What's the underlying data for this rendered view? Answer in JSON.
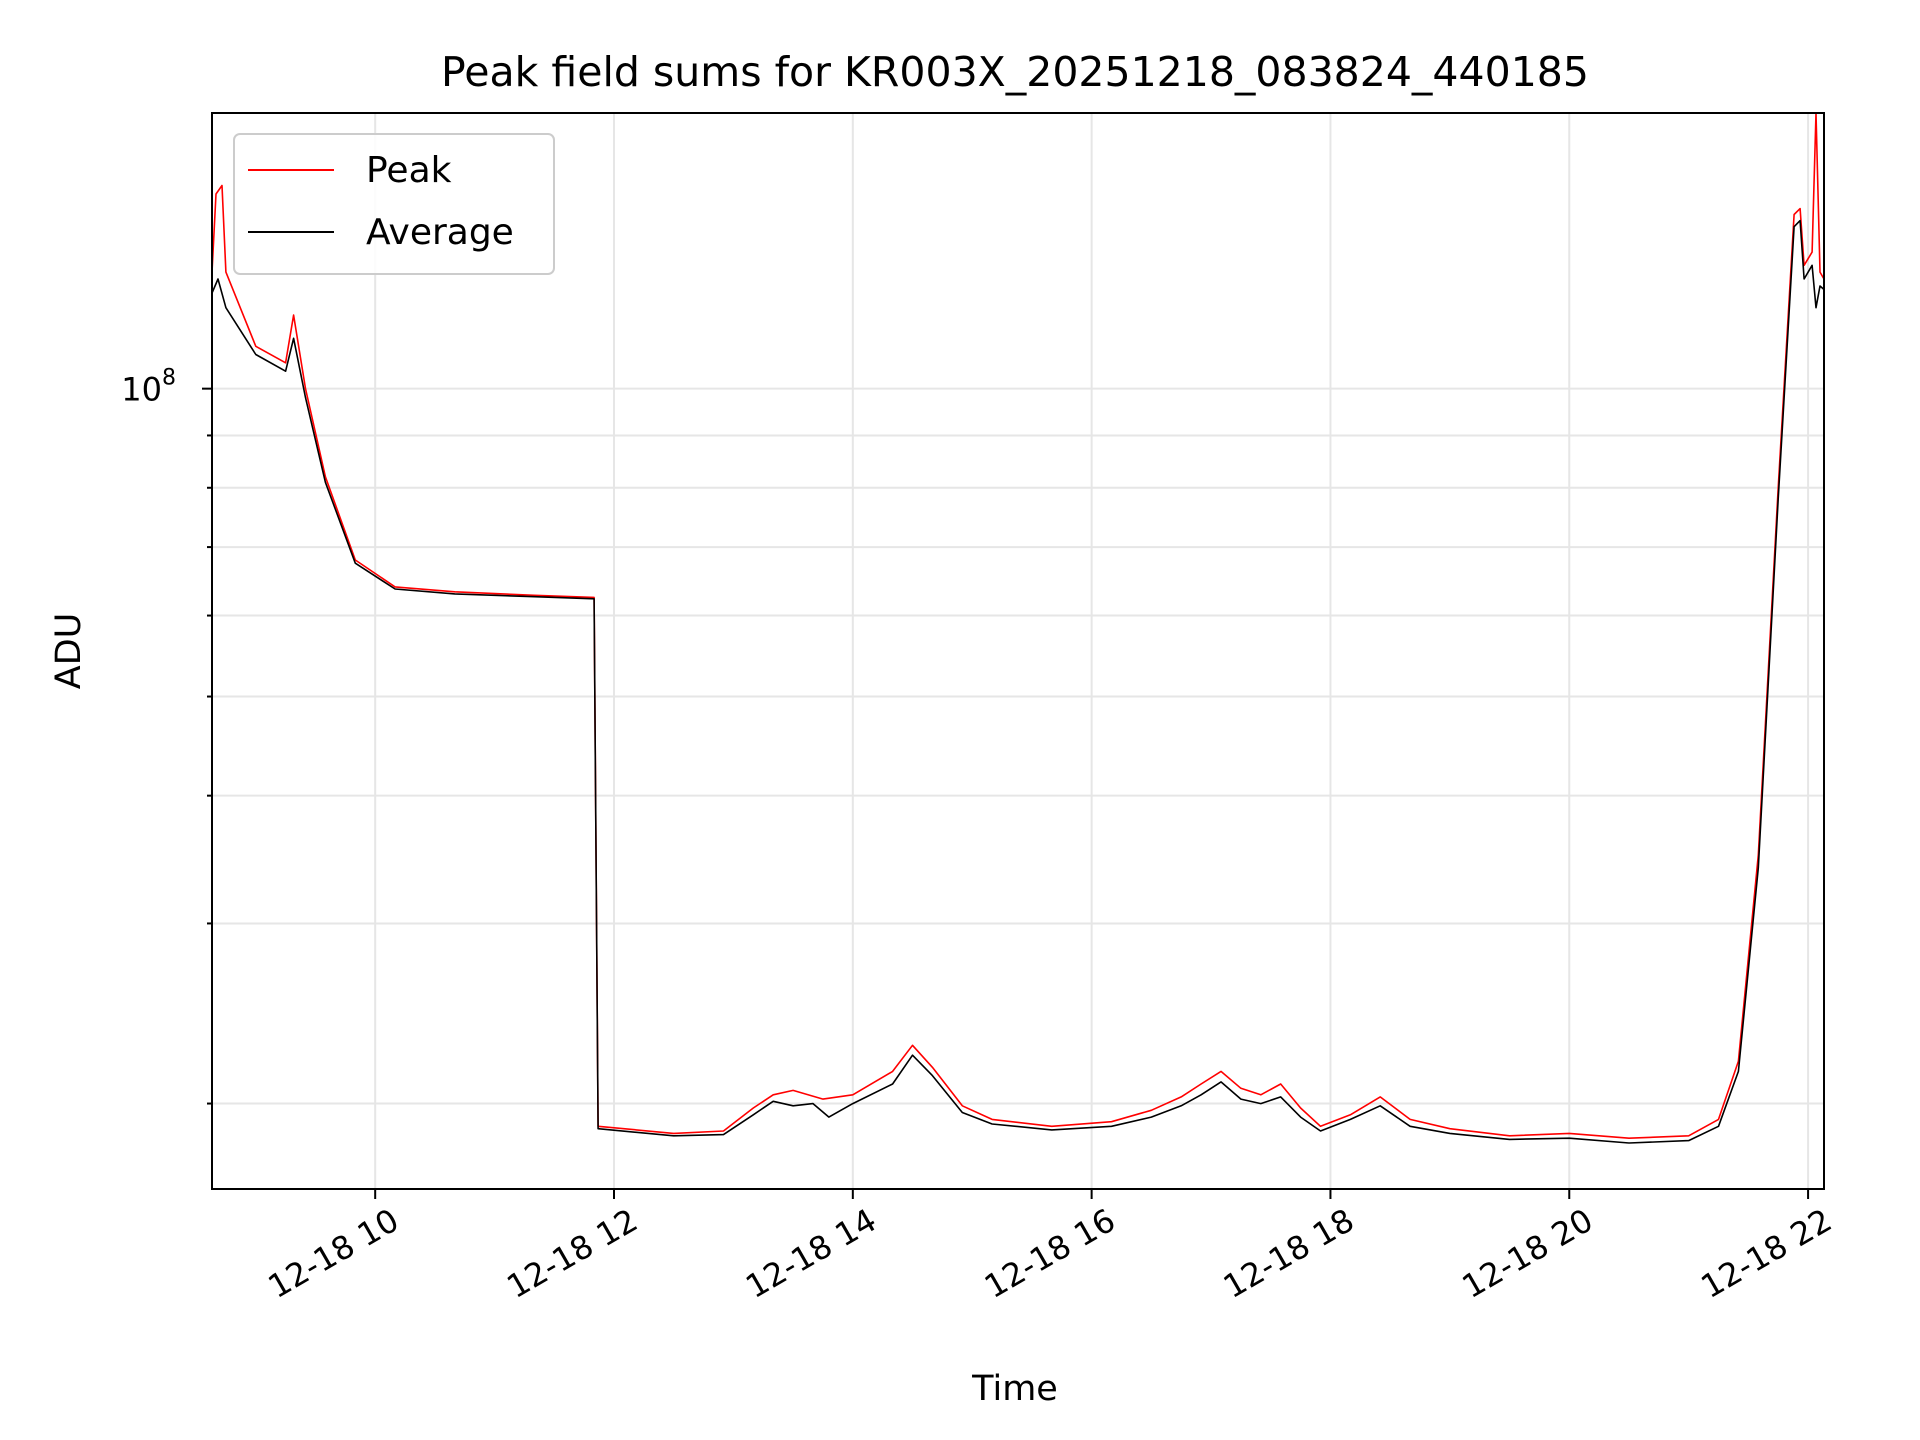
{
  "chart_data": {
    "type": "line",
    "title": "Peak field sums for KR003X_20251218_083824_440185",
    "xlabel": "Time",
    "ylabel": "ADU",
    "y_scale": "log",
    "y_major_tick": {
      "value": 100000000,
      "base": "10",
      "exponent": "8"
    },
    "ylim": [
      16500000,
      186000000
    ],
    "x_axis_type": "datetime",
    "xlim": [
      "2025-12-18 08:38",
      "2025-12-18 22:08"
    ],
    "x_ticks": [
      {
        "at": "2025-12-18 10:00",
        "label": "12-18 10"
      },
      {
        "at": "2025-12-18 12:00",
        "label": "12-18 12"
      },
      {
        "at": "2025-12-18 14:00",
        "label": "12-18 14"
      },
      {
        "at": "2025-12-18 16:00",
        "label": "12-18 16"
      },
      {
        "at": "2025-12-18 18:00",
        "label": "12-18 18"
      },
      {
        "at": "2025-12-18 20:00",
        "label": "12-18 20"
      },
      {
        "at": "2025-12-18 22:00",
        "label": "12-18 22"
      }
    ],
    "grid": true,
    "legend_position": "top-left",
    "series": [
      {
        "name": "Peak",
        "color": "#ff0000",
        "points": [
          [
            "2025-12-18 08:38",
            130000000
          ],
          [
            "2025-12-18 08:40",
            155000000
          ],
          [
            "2025-12-18 08:43",
            158000000
          ],
          [
            "2025-12-18 08:45",
            130000000
          ],
          [
            "2025-12-18 09:00",
            110000000
          ],
          [
            "2025-12-18 09:15",
            106000000
          ],
          [
            "2025-12-18 09:19",
            118000000
          ],
          [
            "2025-12-18 09:25",
            100000000
          ],
          [
            "2025-12-18 09:35",
            82000000
          ],
          [
            "2025-12-18 09:50",
            68000000
          ],
          [
            "2025-12-18 10:10",
            64000000
          ],
          [
            "2025-12-18 10:40",
            63300000
          ],
          [
            "2025-12-18 11:20",
            62800000
          ],
          [
            "2025-12-18 11:50",
            62500000
          ],
          [
            "2025-12-18 11:52",
            19000000
          ],
          [
            "2025-12-18 12:30",
            18700000
          ],
          [
            "2025-12-18 12:55",
            18800000
          ],
          [
            "2025-12-18 13:10",
            19800000
          ],
          [
            "2025-12-18 13:20",
            20400000
          ],
          [
            "2025-12-18 13:30",
            20600000
          ],
          [
            "2025-12-18 13:45",
            20200000
          ],
          [
            "2025-12-18 14:00",
            20400000
          ],
          [
            "2025-12-18 14:20",
            21500000
          ],
          [
            "2025-12-18 14:30",
            22800000
          ],
          [
            "2025-12-18 14:40",
            21700000
          ],
          [
            "2025-12-18 14:55",
            19900000
          ],
          [
            "2025-12-18 15:10",
            19300000
          ],
          [
            "2025-12-18 15:40",
            19000000
          ],
          [
            "2025-12-18 16:10",
            19200000
          ],
          [
            "2025-12-18 16:30",
            19700000
          ],
          [
            "2025-12-18 16:45",
            20300000
          ],
          [
            "2025-12-18 16:55",
            20900000
          ],
          [
            "2025-12-18 17:05",
            21500000
          ],
          [
            "2025-12-18 17:15",
            20700000
          ],
          [
            "2025-12-18 17:25",
            20400000
          ],
          [
            "2025-12-18 17:35",
            20900000
          ],
          [
            "2025-12-18 17:45",
            19800000
          ],
          [
            "2025-12-18 17:55",
            19000000
          ],
          [
            "2025-12-18 18:10",
            19500000
          ],
          [
            "2025-12-18 18:25",
            20300000
          ],
          [
            "2025-12-18 18:40",
            19300000
          ],
          [
            "2025-12-18 19:00",
            18900000
          ],
          [
            "2025-12-18 19:30",
            18600000
          ],
          [
            "2025-12-18 20:00",
            18700000
          ],
          [
            "2025-12-18 20:30",
            18500000
          ],
          [
            "2025-12-18 21:00",
            18600000
          ],
          [
            "2025-12-18 21:15",
            19300000
          ],
          [
            "2025-12-18 21:25",
            22000000
          ],
          [
            "2025-12-18 21:35",
            35000000
          ],
          [
            "2025-12-18 21:45",
            80000000
          ],
          [
            "2025-12-18 21:53",
            148000000
          ],
          [
            "2025-12-18 21:56",
            150000000
          ],
          [
            "2025-12-18 21:58",
            132000000
          ],
          [
            "2025-12-18 22:02",
            136000000
          ],
          [
            "2025-12-18 22:04",
            186000000
          ],
          [
            "2025-12-18 22:06",
            130000000
          ],
          [
            "2025-12-18 22:08",
            128000000
          ]
        ]
      },
      {
        "name": "Average",
        "color": "#000000",
        "points": [
          [
            "2025-12-18 08:38",
            124000000
          ],
          [
            "2025-12-18 08:41",
            128000000
          ],
          [
            "2025-12-18 08:45",
            120000000
          ],
          [
            "2025-12-18 09:00",
            108000000
          ],
          [
            "2025-12-18 09:15",
            104000000
          ],
          [
            "2025-12-18 09:19",
            112000000
          ],
          [
            "2025-12-18 09:25",
            98000000
          ],
          [
            "2025-12-18 09:35",
            81000000
          ],
          [
            "2025-12-18 09:50",
            67500000
          ],
          [
            "2025-12-18 10:10",
            63700000
          ],
          [
            "2025-12-18 10:40",
            63000000
          ],
          [
            "2025-12-18 11:20",
            62600000
          ],
          [
            "2025-12-18 11:50",
            62300000
          ],
          [
            "2025-12-18 11:52",
            18900000
          ],
          [
            "2025-12-18 12:30",
            18600000
          ],
          [
            "2025-12-18 12:55",
            18650000
          ],
          [
            "2025-12-18 13:10",
            19500000
          ],
          [
            "2025-12-18 13:20",
            20100000
          ],
          [
            "2025-12-18 13:30",
            19900000
          ],
          [
            "2025-12-18 13:40",
            20000000
          ],
          [
            "2025-12-18 13:48",
            19400000
          ],
          [
            "2025-12-18 14:00",
            20000000
          ],
          [
            "2025-12-18 14:20",
            20900000
          ],
          [
            "2025-12-18 14:30",
            22300000
          ],
          [
            "2025-12-18 14:40",
            21300000
          ],
          [
            "2025-12-18 14:55",
            19600000
          ],
          [
            "2025-12-18 15:10",
            19100000
          ],
          [
            "2025-12-18 15:40",
            18850000
          ],
          [
            "2025-12-18 16:10",
            19000000
          ],
          [
            "2025-12-18 16:30",
            19400000
          ],
          [
            "2025-12-18 16:45",
            19900000
          ],
          [
            "2025-12-18 16:55",
            20400000
          ],
          [
            "2025-12-18 17:05",
            21000000
          ],
          [
            "2025-12-18 17:15",
            20200000
          ],
          [
            "2025-12-18 17:25",
            20000000
          ],
          [
            "2025-12-18 17:35",
            20300000
          ],
          [
            "2025-12-18 17:45",
            19400000
          ],
          [
            "2025-12-18 17:55",
            18800000
          ],
          [
            "2025-12-18 18:10",
            19300000
          ],
          [
            "2025-12-18 18:25",
            19900000
          ],
          [
            "2025-12-18 18:40",
            19000000
          ],
          [
            "2025-12-18 19:00",
            18700000
          ],
          [
            "2025-12-18 19:30",
            18450000
          ],
          [
            "2025-12-18 20:00",
            18500000
          ],
          [
            "2025-12-18 20:30",
            18300000
          ],
          [
            "2025-12-18 21:00",
            18400000
          ],
          [
            "2025-12-18 21:15",
            19000000
          ],
          [
            "2025-12-18 21:25",
            21500000
          ],
          [
            "2025-12-18 21:35",
            34000000
          ],
          [
            "2025-12-18 21:45",
            78000000
          ],
          [
            "2025-12-18 21:53",
            144000000
          ],
          [
            "2025-12-18 21:56",
            146000000
          ],
          [
            "2025-12-18 21:58",
            128000000
          ],
          [
            "2025-12-18 22:02",
            132000000
          ],
          [
            "2025-12-18 22:04",
            120000000
          ],
          [
            "2025-12-18 22:06",
            126000000
          ],
          [
            "2025-12-18 22:08",
            125000000
          ]
        ]
      }
    ]
  }
}
